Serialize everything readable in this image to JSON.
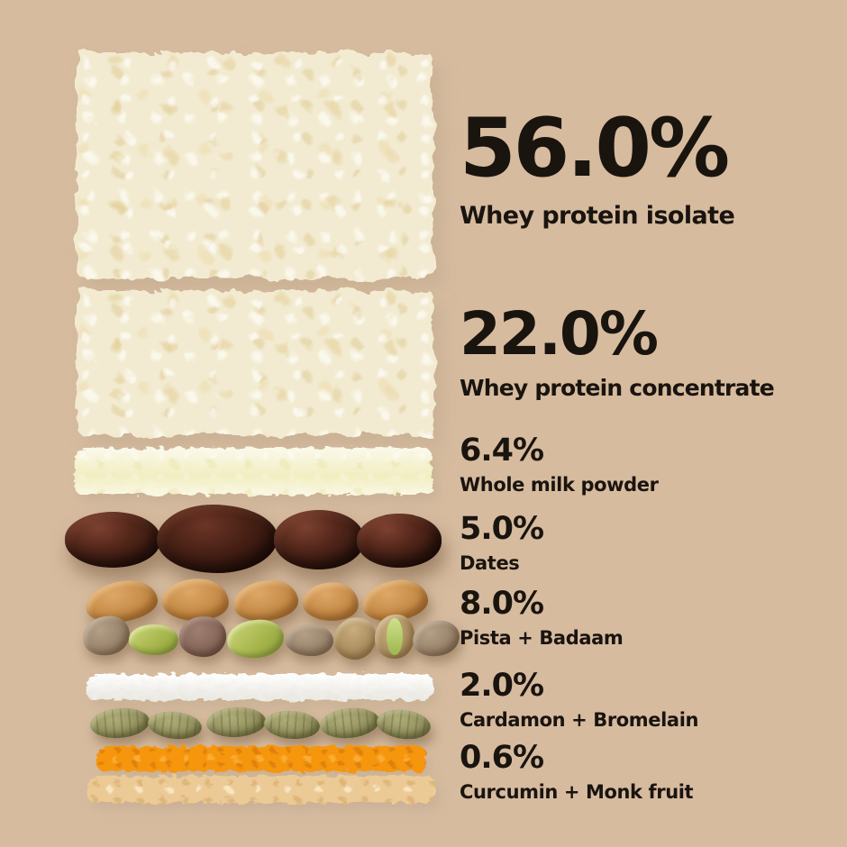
{
  "title": "Ingredient composition infographic",
  "colors": {
    "bg": "#d6bb9f",
    "text": "#1a140f",
    "powder-cream": "#f2ebd1",
    "milk-powder": "#f6f3d6",
    "date-brown": "#44221a",
    "almond-tan": "#c58a46",
    "pistachio-green": "#a9b84e",
    "white-strip": "#f8f7f2",
    "cardamom-olive": "#93915e",
    "curcumin-orange": "#f6960f",
    "monkfruit-tan": "#ecca96"
  },
  "ingredients": [
    {
      "percent": "56.0%",
      "label": "Whey protein isolate",
      "visual": "cream-powder-slab"
    },
    {
      "percent": "22.0%",
      "label": "Whey protein concentrate",
      "visual": "cream-powder-slab"
    },
    {
      "percent": "6.4%",
      "label": "Whole milk powder",
      "visual": "pale-yellow-powder-strip"
    },
    {
      "percent": "5.0%",
      "label": "Dates",
      "visual": "row-of-four-dates"
    },
    {
      "percent": "8.0%",
      "label": "Pista + Badaam",
      "visual": "row-of-almonds-and-pistachios"
    },
    {
      "percent": "2.0%",
      "label": "Cardamon + Bromelain",
      "visual": "white-powder-strip-and-cardamom-pods"
    },
    {
      "percent": "0.6%",
      "label": "Curcumin + Monk fruit",
      "visual": "orange-and-tan-powder-strips"
    }
  ],
  "chart_data": {
    "type": "bar",
    "categories": [
      "Whey protein isolate",
      "Whey protein concentrate",
      "Whole milk powder",
      "Dates",
      "Pista + Badaam",
      "Cardamon + Bromelain",
      "Curcumin + Monk fruit"
    ],
    "values": [
      56.0,
      22.0,
      6.4,
      5.0,
      8.0,
      2.0,
      0.6
    ],
    "unit": "%",
    "title": "",
    "xlabel": "",
    "ylabel": "",
    "legend": "none",
    "layout": "ingredient photos on left, percentage labels on right"
  }
}
